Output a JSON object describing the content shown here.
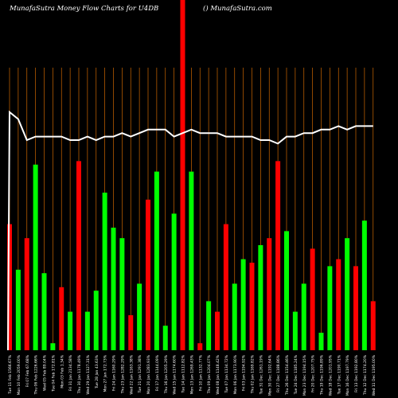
{
  "header": {
    "title": "MunafaSutra  Money Flow  Charts for U4DB",
    "credit": "() MunafaSutra.com"
  },
  "colors": {
    "background": "#000000",
    "up": "#00ff00",
    "down": "#ff0000",
    "gridline": "#cc6600",
    "flow_line": "#ffffff"
  },
  "chart_data": {
    "type": "bar",
    "title": "MunafaSutra  Money Flow  Charts for U4DB",
    "grid": true,
    "ylim": [
      0,
      100
    ],
    "categories": [
      "Tue 11 Feb 1566.67%",
      "Mon 10 Feb 2059.00%",
      "Fri 07 Feb 67.68%",
      "Thu 06 Feb 1226.66%",
      "Wed 05 Feb 89.04%",
      "Tue 04 Feb 172.81%",
      "Mon 03 Feb 1.34%",
      "Fri 31 Jan 2134.58%",
      "Thu 30 Jan 1178.49%",
      "Wed 29 Jan 1127.31%",
      "Tue 28 Jan 43.63%",
      "Mon 27 Jan 172.73%",
      "Fri 24 Jan 1160.29%",
      "Thu 23 Jan 1282.29%",
      "Wed 22 Jan 1163.38%",
      "Tue 21 Jan 1291.38%",
      "Mon 20 Jan 1283.93%",
      "Fri 17 Jan 1144.09%",
      "Thu 16 Jan 1205.29%",
      "Wed 15 Jan 1174.60%",
      "Tue 14 Jan 1112.82%",
      "Mon 13 Jan 1269.43%",
      "Fri 10 Jan 1132.77%",
      "Thu 09 Jan 1204.07%",
      "Wed 08 Jan 1148.42%",
      "Tue 07 Jan 1134.72%",
      "Mon 06 Jan 1173.90%",
      "Fri 03 Jan 1194.92%",
      "Thu 02 Jan 1169.82%",
      "Tue 31 Dec 1261.19%",
      "Mon 30 Dec 1192.64%",
      "Fri 27 Dec 1188.86%",
      "Thu 26 Dec 1154.46%",
      "Tue 24 Dec 1185.24%",
      "Mon 23 Dec 1194.15%",
      "Fri 20 Dec 1207.75%",
      "Thu 19 Dec 1196.89%",
      "Wed 18 Dec 1201.95%",
      "Tue 17 Dec 1190.71%",
      "Mon 16 Dec 1197.79%",
      "Fri 13 Dec 1192.80%",
      "Thu 12 Dec 1174.20%",
      "Wed 11 Dec 1195.00%"
    ],
    "series": [
      {
        "bar_values": [
          36,
          23,
          32,
          53,
          22,
          2,
          18,
          11,
          54,
          11,
          17,
          45,
          35,
          32,
          10,
          19,
          43,
          51,
          7,
          39,
          100,
          51,
          2,
          14,
          11,
          36,
          19,
          26,
          25,
          30,
          32,
          54,
          34,
          11,
          19,
          29,
          5,
          24,
          26,
          32,
          24,
          37,
          14
        ],
        "bar_direction": [
          "down",
          "up",
          "down",
          "up",
          "up",
          "up",
          "down",
          "up",
          "down",
          "up",
          "up",
          "up",
          "up",
          "up",
          "down",
          "up",
          "down",
          "up",
          "up",
          "up",
          "down",
          "up",
          "down",
          "up",
          "down",
          "down",
          "up",
          "up",
          "down",
          "up",
          "down",
          "down",
          "up",
          "up",
          "up",
          "down",
          "up",
          "up",
          "down",
          "up",
          "down",
          "up",
          "down"
        ],
        "flow_line": [
          68,
          66,
          60,
          61,
          61,
          61,
          61,
          60,
          60,
          61,
          60,
          61,
          61,
          62,
          61,
          62,
          63,
          63,
          63,
          61,
          62,
          63,
          62,
          62,
          62,
          61,
          61,
          61,
          61,
          60,
          60,
          59,
          61,
          61,
          62,
          62,
          63,
          63,
          64,
          63,
          64,
          64,
          64
        ]
      }
    ]
  }
}
